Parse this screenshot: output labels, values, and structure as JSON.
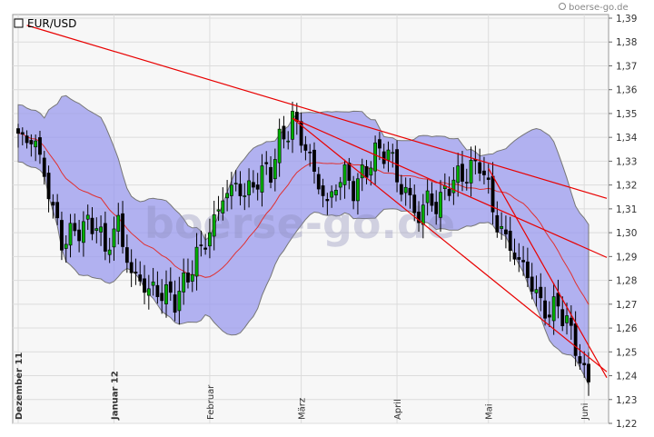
{
  "watermark": "boerse-go.de",
  "logo_text": "boerse-go.de",
  "chart_data": {
    "type": "candlestick",
    "legend": [
      {
        "label": "EUR/USD"
      }
    ],
    "yticks": [
      "1,22",
      "1,23",
      "1,24",
      "1,25",
      "1,26",
      "1,27",
      "1,28",
      "1,29",
      "1,30",
      "1,31",
      "1,32",
      "1,33",
      "1,34",
      "1,35",
      "1,36",
      "1,37",
      "1,38",
      "1,39"
    ],
    "ylim": [
      1.22,
      1.39
    ],
    "xlabels": [
      {
        "label": "Dezember 11",
        "index": 0,
        "bold": true
      },
      {
        "label": "Januar 12",
        "index": 22,
        "bold": true
      },
      {
        "label": "Februar",
        "index": 44,
        "bold": false
      },
      {
        "label": "März",
        "index": 65,
        "bold": false
      },
      {
        "label": "April",
        "index": 87,
        "bold": false
      },
      {
        "label": "Mai",
        "index": 108,
        "bold": false
      },
      {
        "label": "Juni",
        "index": 130,
        "bold": false
      }
    ],
    "n_days": 132,
    "key_closes": [
      [
        0,
        1.34
      ],
      [
        4,
        1.338
      ],
      [
        8,
        1.31
      ],
      [
        10,
        1.296
      ],
      [
        14,
        1.302
      ],
      [
        18,
        1.304
      ],
      [
        20,
        1.292
      ],
      [
        23,
        1.305
      ],
      [
        24,
        1.295
      ],
      [
        26,
        1.283
      ],
      [
        30,
        1.276
      ],
      [
        33,
        1.275
      ],
      [
        36,
        1.272
      ],
      [
        38,
        1.278
      ],
      [
        41,
        1.29
      ],
      [
        44,
        1.3
      ],
      [
        47,
        1.315
      ],
      [
        50,
        1.32
      ],
      [
        52,
        1.316
      ],
      [
        54,
        1.32
      ],
      [
        56,
        1.325
      ],
      [
        58,
        1.326
      ],
      [
        60,
        1.338
      ],
      [
        62,
        1.343
      ],
      [
        63,
        1.348
      ],
      [
        65,
        1.34
      ],
      [
        67,
        1.331
      ],
      [
        69,
        1.32
      ],
      [
        71,
        1.312
      ],
      [
        73,
        1.32
      ],
      [
        75,
        1.325
      ],
      [
        77,
        1.318
      ],
      [
        79,
        1.324
      ],
      [
        81,
        1.33
      ],
      [
        83,
        1.335
      ],
      [
        85,
        1.333
      ],
      [
        86,
        1.33
      ],
      [
        88,
        1.318
      ],
      [
        90,
        1.315
      ],
      [
        92,
        1.305
      ],
      [
        94,
        1.316
      ],
      [
        96,
        1.31
      ],
      [
        98,
        1.318
      ],
      [
        100,
        1.322
      ],
      [
        102,
        1.324
      ],
      [
        104,
        1.326
      ],
      [
        105,
        1.328
      ],
      [
        106,
        1.33
      ],
      [
        108,
        1.318
      ],
      [
        110,
        1.303
      ],
      [
        112,
        1.298
      ],
      [
        114,
        1.29
      ],
      [
        116,
        1.286
      ],
      [
        118,
        1.278
      ],
      [
        120,
        1.27
      ],
      [
        122,
        1.266
      ],
      [
        124,
        1.27
      ],
      [
        126,
        1.262
      ],
      [
        128,
        1.253
      ],
      [
        130,
        1.24
      ],
      [
        131,
        1.238
      ]
    ],
    "sma_color": "#e03030",
    "band_color": "#9999ee",
    "trendline_color": "#e80000",
    "trendlines": [
      [
        [
          2,
          1.387
        ],
        [
          131,
          1.316
        ]
      ],
      [
        [
          63,
          1.348
        ],
        [
          131,
          1.292
        ]
      ],
      [
        [
          63,
          1.348
        ],
        [
          131,
          1.246
        ]
      ],
      [
        [
          108,
          1.327
        ],
        [
          131,
          1.249
        ]
      ]
    ]
  }
}
